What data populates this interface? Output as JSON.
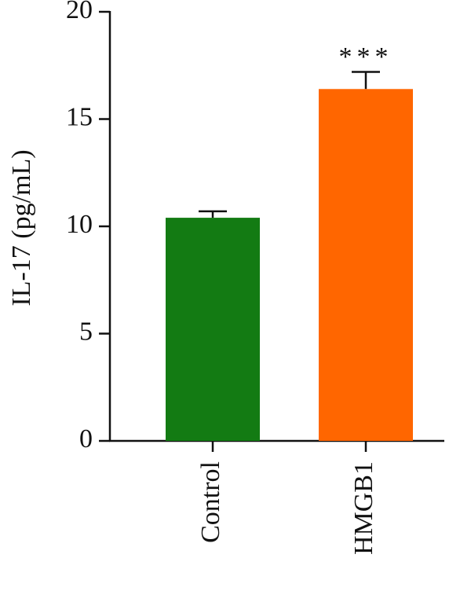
{
  "chart_data": {
    "type": "bar",
    "ylabel": "IL-17 (pg/mL)",
    "categories": [
      "Control",
      "HMGB1"
    ],
    "values": [
      10.4,
      16.4
    ],
    "errors": [
      0.3,
      0.8
    ],
    "colors": [
      "#137b13",
      "#ff6600"
    ],
    "ylim": [
      0,
      20
    ],
    "yticks": [
      0,
      5,
      10,
      15,
      20
    ],
    "annotations": [
      {
        "text": "***",
        "category": "HMGB1"
      }
    ]
  }
}
